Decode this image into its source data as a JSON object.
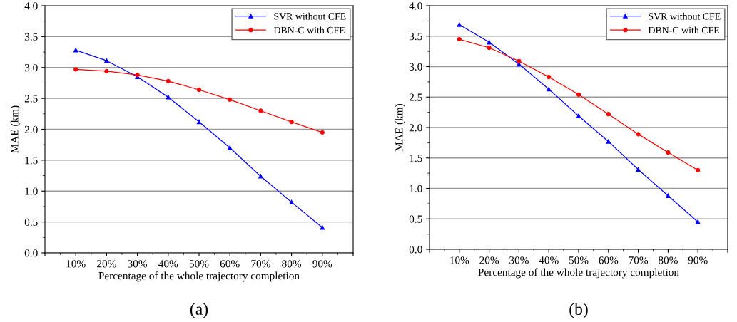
{
  "chart_data": [
    {
      "type": "line",
      "xlabel": "Percentage of the whole trajectory completion",
      "ylabel": "MAE (km)",
      "x": [
        10,
        20,
        30,
        40,
        50,
        60,
        70,
        80,
        90
      ],
      "series": [
        {
          "name": "SVR without CFE",
          "color": "#0000ff",
          "marker": "triangle",
          "values": [
            3.28,
            3.11,
            2.85,
            2.52,
            2.12,
            1.7,
            1.24,
            0.82,
            0.41
          ]
        },
        {
          "name": "DBN-C with CFE",
          "color": "#ff0000",
          "marker": "circle",
          "values": [
            2.97,
            2.94,
            2.88,
            2.78,
            2.64,
            2.48,
            2.3,
            2.12,
            1.95
          ]
        }
      ],
      "xlim": [
        0,
        100
      ],
      "xticks": [
        {
          "value": 0,
          "label": null
        },
        {
          "value": 10,
          "label": "10%"
        },
        {
          "value": 20,
          "label": "20%"
        },
        {
          "value": 30,
          "label": "30%"
        },
        {
          "value": 40,
          "label": "40%"
        },
        {
          "value": 50,
          "label": "50%"
        },
        {
          "value": 60,
          "label": "60%"
        },
        {
          "value": 70,
          "label": "70%"
        },
        {
          "value": 80,
          "label": "80%"
        },
        {
          "value": 90,
          "label": "90%"
        },
        {
          "value": 100,
          "label": null
        }
      ],
      "ylim": [
        0,
        4.0
      ],
      "yticks": [
        {
          "value": 0,
          "label": "0.0"
        },
        {
          "value": 0.5,
          "label": "0.5"
        },
        {
          "value": 1,
          "label": "1.0"
        },
        {
          "value": 1.5,
          "label": "1.5"
        },
        {
          "value": 2,
          "label": "2.0"
        },
        {
          "value": 2.5,
          "label": "2.5"
        },
        {
          "value": 3,
          "label": "3.0"
        },
        {
          "value": 3.5,
          "label": "3.5"
        },
        {
          "value": 4,
          "label": "4.0"
        }
      ],
      "grid": "y",
      "legend": "top right",
      "line_style": "solid",
      "annotations": [
        "(a)"
      ]
    },
    {
      "type": "line",
      "xlabel": "Percentage of the whole trajectory completion",
      "ylabel": "MAE (km)",
      "x": [
        10,
        20,
        30,
        40,
        50,
        60,
        70,
        80,
        90
      ],
      "series": [
        {
          "name": "SVR without CFE",
          "color": "#0000ff",
          "marker": "triangle",
          "values": [
            3.69,
            3.4,
            3.04,
            2.63,
            2.19,
            1.77,
            1.31,
            0.88,
            0.45
          ]
        },
        {
          "name": "DBN-C with CFE",
          "color": "#ff0000",
          "marker": "circle",
          "values": [
            3.45,
            3.31,
            3.09,
            2.83,
            2.54,
            2.22,
            1.89,
            1.59,
            1.3
          ]
        }
      ],
      "xlim": [
        0,
        100
      ],
      "xticks": [
        {
          "value": 0,
          "label": null
        },
        {
          "value": 10,
          "label": "10%"
        },
        {
          "value": 20,
          "label": "20%"
        },
        {
          "value": 30,
          "label": "30%"
        },
        {
          "value": 40,
          "label": "40%"
        },
        {
          "value": 50,
          "label": "50%"
        },
        {
          "value": 60,
          "label": "60%"
        },
        {
          "value": 70,
          "label": "70%"
        },
        {
          "value": 80,
          "label": "80%"
        },
        {
          "value": 90,
          "label": "90%"
        },
        {
          "value": 100,
          "label": null
        }
      ],
      "ylim": [
        0,
        4.0
      ],
      "yticks": [
        {
          "value": 0,
          "label": "0.0"
        },
        {
          "value": 0.5,
          "label": "0.5"
        },
        {
          "value": 1,
          "label": "1.0"
        },
        {
          "value": 1.5,
          "label": "1.5"
        },
        {
          "value": 2,
          "label": "2.0"
        },
        {
          "value": 2.5,
          "label": "2.5"
        },
        {
          "value": 3,
          "label": "3.0"
        },
        {
          "value": 3.5,
          "label": "3.5"
        },
        {
          "value": 4,
          "label": "4.0"
        }
      ],
      "grid": "y",
      "legend": "top right",
      "line_style": "solid",
      "annotations": [
        "(b)"
      ]
    }
  ]
}
